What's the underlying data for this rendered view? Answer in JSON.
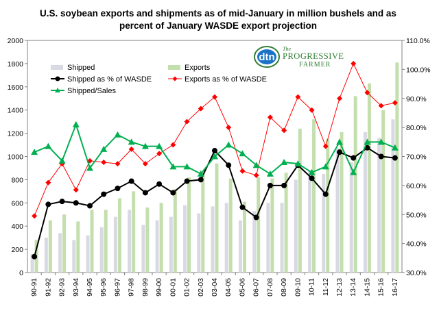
{
  "chart_data": {
    "type": "bar",
    "title_line1": "U.S. soybean exports and shipments as of mid-January in million bushels and as",
    "title_line2": "percent of January WASDE  export projection",
    "categories": [
      "90-91",
      "91-92",
      "92-93",
      "93-94",
      "94-95",
      "95-96",
      "96-97",
      "97-98",
      "98-99",
      "99-00",
      "00-01",
      "01-02",
      "02-03",
      "03-04",
      "04-05",
      "05-06",
      "06-07",
      "07-08",
      "08-09",
      "09-10",
      "10-11",
      "11-12",
      "12-13",
      "13-14",
      "14-15",
      "15-16",
      "16-17"
    ],
    "y_left": {
      "min": 0,
      "max": 2000,
      "step": 200,
      "ticks": [
        "0",
        "200",
        "400",
        "600",
        "800",
        "1000",
        "1200",
        "1400",
        "1600",
        "1800",
        "2000"
      ]
    },
    "y_right": {
      "min": 30,
      "max": 110,
      "step": 10,
      "ticks": [
        "30.0%",
        "40.0%",
        "50.0%",
        "60.0%",
        "70.0%",
        "80.0%",
        "90.0%",
        "100.0%",
        "110.0%"
      ]
    },
    "series": [
      {
        "name": "Shipped",
        "kind": "bar",
        "axis": "left",
        "color": "#d9d9e3",
        "values": [
          160,
          300,
          340,
          280,
          320,
          390,
          480,
          540,
          410,
          450,
          480,
          580,
          510,
          570,
          600,
          450,
          530,
          600,
          600,
          800,
          880,
          850,
          1070,
          950,
          1210,
          1160,
          1320
        ]
      },
      {
        "name": "Exports",
        "kind": "bar",
        "axis": "left",
        "color": "#c4dfae",
        "values": [
          280,
          450,
          500,
          440,
          540,
          540,
          640,
          700,
          560,
          600,
          720,
          820,
          860,
          940,
          810,
          610,
          820,
          810,
          860,
          1240,
          1320,
          1150,
          1210,
          1520,
          1630,
          1400,
          1810
        ]
      },
      {
        "name": "Shipped as % of WASDE",
        "kind": "line",
        "axis": "right",
        "color": "#000000",
        "values": [
          35.5,
          53.5,
          54.5,
          54.0,
          53.0,
          57.0,
          59.0,
          61.5,
          57.5,
          60.5,
          57.5,
          61.5,
          62.0,
          72.0,
          67.0,
          52.5,
          49.0,
          60.0,
          60.0,
          67.0,
          62.5,
          57.0,
          71.5,
          69.5,
          73.0,
          70.0,
          69.5
        ]
      },
      {
        "name": "Exports as % of WASDE",
        "kind": "line",
        "axis": "right",
        "color": "#ff0000",
        "values": [
          49.5,
          61.0,
          67.5,
          58.5,
          68.5,
          68.0,
          67.5,
          72.5,
          67.5,
          71.0,
          74.0,
          82.0,
          86.5,
          90.5,
          80.0,
          65.0,
          63.5,
          83.5,
          79.0,
          90.5,
          86.0,
          73.5,
          90.0,
          102.0,
          92.0,
          87.5,
          88.5
        ]
      },
      {
        "name": "Shipped/Sales",
        "kind": "line",
        "axis": "right",
        "color": "#00b050",
        "values": [
          71.5,
          73.5,
          68.5,
          81.0,
          66.0,
          72.5,
          77.5,
          75.0,
          73.5,
          73.5,
          66.5,
          66.5,
          64.0,
          70.0,
          74.0,
          71.0,
          67.0,
          64.0,
          68.0,
          67.5,
          64.5,
          66.5,
          75.0,
          64.5,
          75.0,
          75.0,
          73.0
        ]
      }
    ],
    "grid": false,
    "legend_position": "top-left"
  },
  "logo": {
    "dtn": "dtn",
    "the": "The",
    "progressive": "PROGRESSIVE",
    "farmer": "FARMER"
  },
  "colors": {
    "background": "#ffffff",
    "axis": "#808080"
  }
}
